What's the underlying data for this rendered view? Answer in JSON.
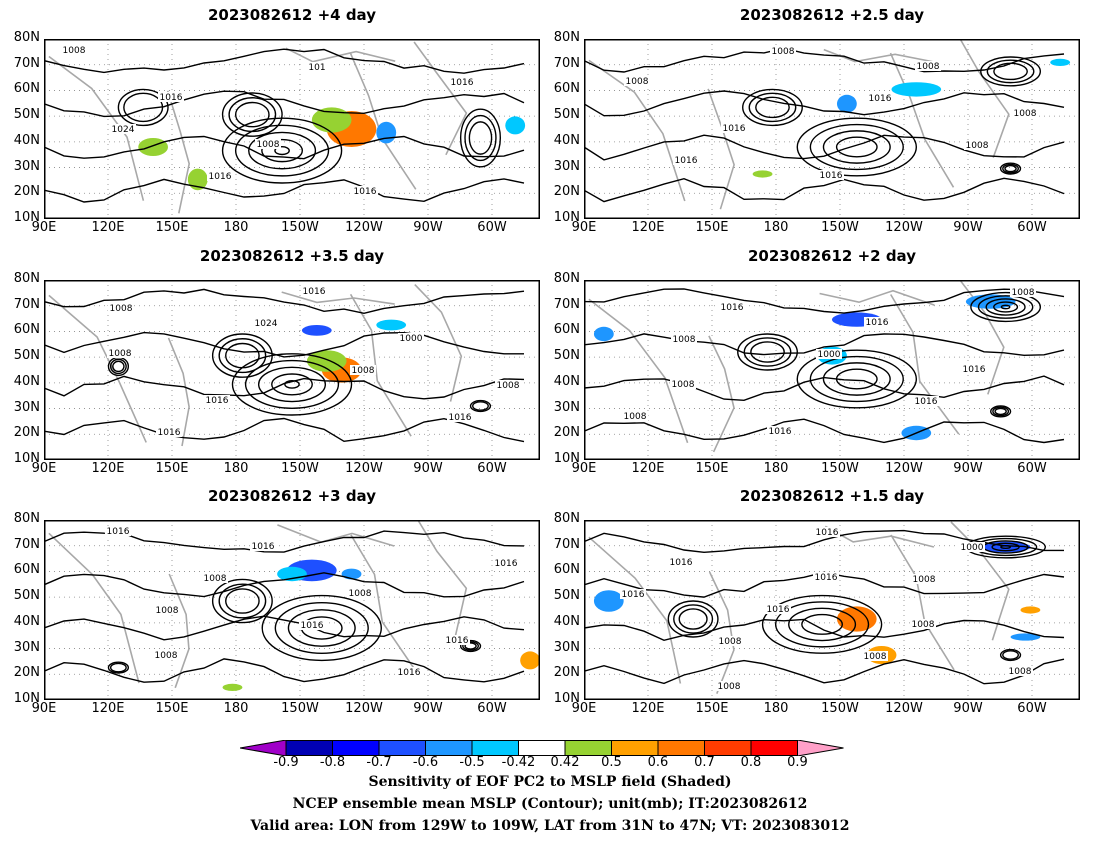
{
  "panels": [
    {
      "title": "2023082612  +4 day"
    },
    {
      "title": "2023082612  +2.5 day"
    },
    {
      "title": "2023082612  +3.5 day"
    },
    {
      "title": "2023082612  +2 day"
    },
    {
      "title": "2023082612  +3 day"
    },
    {
      "title": "2023082612  +1.5 day"
    }
  ],
  "axes": {
    "lat_labels": [
      "80N",
      "70N",
      "60N",
      "50N",
      "40N",
      "30N",
      "20N",
      "10N"
    ],
    "lon_labels": [
      "90E",
      "120E",
      "150E",
      "180",
      "150W",
      "120W",
      "90W",
      "60W"
    ]
  },
  "contour_labels": {
    "p0": [
      "1008",
      "1016",
      "1008",
      "1016",
      "1016",
      "1024",
      "1016",
      "101"
    ],
    "p1": [
      "1008",
      "1016",
      "1016",
      "1008",
      "1008",
      "1016",
      "1008",
      "1016",
      "1008"
    ],
    "p2": [
      "1008",
      "1016",
      "1016",
      "1000",
      "1008",
      "1016",
      "1024",
      "1008",
      "1016",
      "1008"
    ],
    "p3": [
      "1008",
      "1016",
      "1016",
      "1016",
      "1008",
      "1016",
      "1000",
      "1016",
      "1008",
      "1008"
    ],
    "p4": [
      "1008",
      "1016",
      "1008",
      "1016",
      "1016",
      "1008",
      "1016",
      "1016",
      "1016",
      "1008"
    ],
    "p5": [
      "1008",
      "1016",
      "1008",
      "1008",
      "1016",
      "1016",
      "1008",
      "1000",
      "1016",
      "1008",
      "1016",
      "1008"
    ]
  },
  "colorbar": {
    "labels": [
      "-0.9",
      "-0.8",
      "-0.7",
      "-0.6",
      "-0.5",
      "-0.42",
      "0.42",
      "0.5",
      "0.6",
      "0.7",
      "0.8",
      "0.9"
    ],
    "colors": [
      "#a000c8",
      "#0000b4",
      "#0000ff",
      "#1e50ff",
      "#1e96ff",
      "#00c8ff",
      "#ffffff",
      "#96d232",
      "#ffa000",
      "#ff7800",
      "#ff3c00",
      "#ff0000",
      "#ffa0c8"
    ]
  },
  "caption": {
    "line1": "Sensitivity of EOF PC2 to MSLP field (Shaded)",
    "line2": "NCEP ensemble mean MSLP (Contour); unit(mb); IT:2023082612",
    "line3": "Valid area: LON from 129W to 109W, LAT from 31N to 47N; VT: 2023083012"
  }
}
